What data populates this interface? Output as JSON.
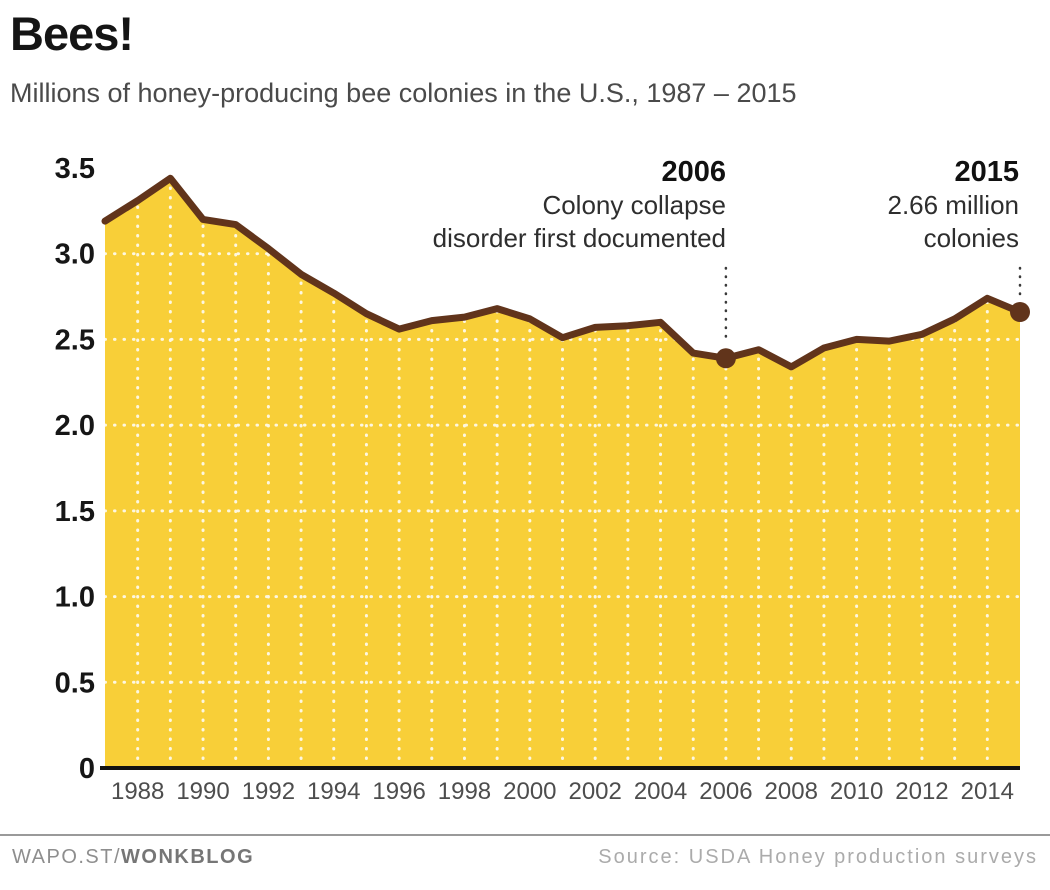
{
  "header": {
    "title": "Bees!",
    "subtitle": "Millions of honey-producing bee colonies in the U.S., 1987 – 2015"
  },
  "annotations": {
    "ccd": {
      "year": "2006",
      "line1": "Colony collapse",
      "line2": "disorder first documented"
    },
    "latest": {
      "year": "2015",
      "line1": "2.66 million",
      "line2": "colonies"
    }
  },
  "footer": {
    "brand_prefix": "WAPO.ST/",
    "brand_bold": "WONKBLOG",
    "source": "Source: USDA Honey production surveys"
  },
  "colors": {
    "area_fill": "#F8CF38",
    "line_stroke": "#61341B",
    "grid": "#FFFFFF",
    "axis": "#111111",
    "annotation_dotted_line": "#3a3a3a"
  },
  "chart_data": {
    "type": "area",
    "title": "Bees!",
    "subtitle": "Millions of honey-producing bee colonies in the U.S., 1987 - 2015",
    "xlabel": "",
    "ylabel": "",
    "ylim": [
      0,
      3.5
    ],
    "grid": "white dotted, horizontal every 0.5, vertical every year",
    "legend": "none",
    "x": [
      1987,
      1988,
      1989,
      1990,
      1991,
      1992,
      1993,
      1994,
      1995,
      1996,
      1997,
      1998,
      1999,
      2000,
      2001,
      2002,
      2003,
      2004,
      2005,
      2006,
      2007,
      2008,
      2009,
      2010,
      2011,
      2012,
      2013,
      2014,
      2015
    ],
    "values": [
      3.19,
      3.31,
      3.44,
      3.2,
      3.17,
      3.03,
      2.88,
      2.77,
      2.65,
      2.56,
      2.61,
      2.63,
      2.68,
      2.62,
      2.51,
      2.57,
      2.58,
      2.6,
      2.42,
      2.39,
      2.44,
      2.34,
      2.45,
      2.5,
      2.49,
      2.53,
      2.62,
      2.74,
      2.66
    ],
    "yticks": [
      0,
      0.5,
      1.0,
      1.5,
      2.0,
      2.5,
      3.0,
      3.5
    ],
    "ytick_labels": [
      "0",
      "0.5",
      "1.0",
      "1.5",
      "2.0",
      "2.5",
      "3.0",
      "3.5"
    ],
    "xticks": [
      1988,
      1990,
      1992,
      1994,
      1996,
      1998,
      2000,
      2002,
      2004,
      2006,
      2008,
      2010,
      2012,
      2014
    ],
    "markers": [
      {
        "year": 2006,
        "value": 2.39
      },
      {
        "year": 2015,
        "value": 2.66
      }
    ]
  }
}
